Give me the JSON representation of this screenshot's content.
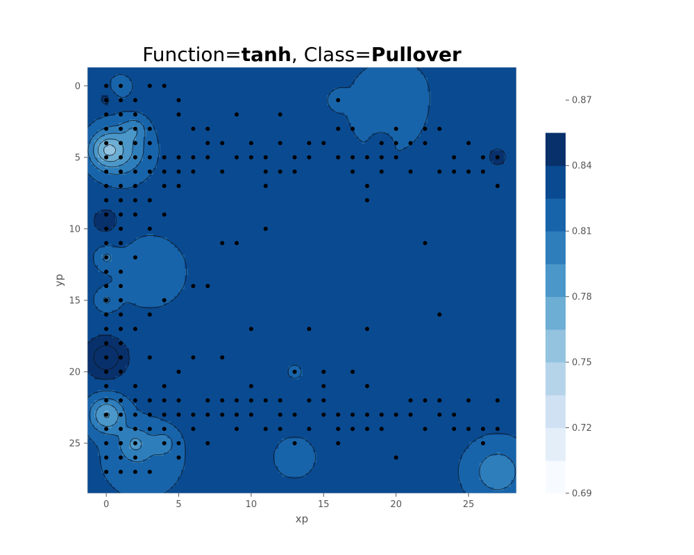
{
  "chart_data": {
    "type": "heatmap",
    "title": {
      "prefix": "Function=",
      "function": "tanh",
      "separator": ", Class=",
      "class": "Pullover"
    },
    "xlabel": "xp",
    "ylabel": "yp",
    "x_ticks": [
      0,
      5,
      10,
      15,
      20,
      25
    ],
    "y_ticks": [
      0,
      5,
      10,
      15,
      20,
      25
    ],
    "xlim": [
      -1.3,
      28.3
    ],
    "ylim": [
      28.5,
      -1.3
    ],
    "y_inverted": true,
    "colorbar": {
      "range": [
        0.69,
        0.885
      ],
      "tick_values": [
        0.69,
        0.72,
        0.75,
        0.78,
        0.81,
        0.84,
        0.87
      ],
      "tick_labels": [
        "0.69",
        "0.72",
        "0.75",
        "0.78",
        "0.81",
        "0.84",
        "0.87"
      ],
      "levels": [
        0.69,
        0.705,
        0.72,
        0.735,
        0.75,
        0.765,
        0.78,
        0.795,
        0.81,
        0.825,
        0.84,
        0.855,
        0.87,
        0.885
      ],
      "colors": [
        "#f7fbff",
        "#e3eef9",
        "#cfe1f2",
        "#b5d4e9",
        "#93c3df",
        "#6daed5",
        "#4b97c9",
        "#2f7ebc",
        "#1864aa",
        "#0a4a90",
        "#08306b"
      ]
    },
    "field": {
      "base": 0.832,
      "anomalies": [
        {
          "x": 20,
          "y": 1.5,
          "a": -0.012,
          "r": 22
        },
        {
          "x": 26,
          "y": 3,
          "a": 0.006,
          "r": 18
        },
        {
          "x": 3,
          "y": 13,
          "a": -0.012,
          "r": 12
        },
        {
          "x": 2.5,
          "y": 26,
          "a": -0.018,
          "r": 9
        },
        {
          "x": 27,
          "y": 27,
          "a": -0.03,
          "r": 5
        },
        {
          "x": 13,
          "y": 26,
          "a": -0.018,
          "r": 2.2
        },
        {
          "x": 1,
          "y": 4.5,
          "a": -0.04,
          "r": 4
        },
        {
          "x": 0,
          "y": 4.5,
          "a": -0.04,
          "r": 1.2
        },
        {
          "x": 1,
          "y": 0,
          "a": -0.02,
          "r": 0.6
        },
        {
          "x": 2,
          "y": 3,
          "a": -0.02,
          "r": 0.6
        },
        {
          "x": 0,
          "y": 23,
          "a": -0.05,
          "r": 1.5
        },
        {
          "x": 2,
          "y": 25,
          "a": -0.025,
          "r": 1
        },
        {
          "x": 4,
          "y": 25,
          "a": -0.02,
          "r": 0.6
        },
        {
          "x": 0,
          "y": 12,
          "a": -0.02,
          "r": 0.5
        },
        {
          "x": 0,
          "y": 15,
          "a": -0.02,
          "r": 0.5
        },
        {
          "x": 0,
          "y": 19,
          "a": 0.035,
          "r": 1.8
        },
        {
          "x": 0,
          "y": 9.5,
          "a": 0.015,
          "r": 1.5
        },
        {
          "x": 0,
          "y": 1,
          "a": 0.012,
          "r": 0.5
        },
        {
          "x": 19,
          "y": 4,
          "a": 0.012,
          "r": 0.35
        },
        {
          "x": 16,
          "y": 1,
          "a": -0.012,
          "r": 0.35
        },
        {
          "x": 13,
          "y": 20,
          "a": -0.012,
          "r": 0.4
        },
        {
          "x": 27,
          "y": 5,
          "a": 0.01,
          "r": 0.35
        }
      ]
    },
    "points": [
      [
        0,
        0
      ],
      [
        1,
        0
      ],
      [
        3,
        0
      ],
      [
        4,
        0
      ],
      [
        0,
        1
      ],
      [
        1,
        1
      ],
      [
        2,
        1
      ],
      [
        5,
        1
      ],
      [
        16,
        1
      ],
      [
        0,
        2
      ],
      [
        1,
        2
      ],
      [
        2,
        2
      ],
      [
        5,
        2
      ],
      [
        9,
        2
      ],
      [
        12,
        2
      ],
      [
        0,
        3
      ],
      [
        1,
        3
      ],
      [
        2,
        3
      ],
      [
        3,
        3
      ],
      [
        6,
        3
      ],
      [
        7,
        3
      ],
      [
        16,
        3
      ],
      [
        17,
        3
      ],
      [
        20,
        3
      ],
      [
        22,
        3
      ],
      [
        23,
        3
      ],
      [
        0,
        4
      ],
      [
        1,
        4
      ],
      [
        2,
        4
      ],
      [
        3,
        4
      ],
      [
        7,
        4
      ],
      [
        8,
        4
      ],
      [
        10,
        4
      ],
      [
        12,
        4
      ],
      [
        14,
        4
      ],
      [
        15,
        4
      ],
      [
        19,
        4
      ],
      [
        20,
        4
      ],
      [
        21,
        4
      ],
      [
        22,
        4
      ],
      [
        25,
        4
      ],
      [
        0,
        5
      ],
      [
        1,
        5
      ],
      [
        2,
        5
      ],
      [
        3,
        5
      ],
      [
        4,
        5
      ],
      [
        5,
        5
      ],
      [
        6,
        5
      ],
      [
        7,
        5
      ],
      [
        9,
        5
      ],
      [
        10,
        5
      ],
      [
        11,
        5
      ],
      [
        13,
        5
      ],
      [
        14,
        5
      ],
      [
        16,
        5
      ],
      [
        17,
        5
      ],
      [
        18,
        5
      ],
      [
        19,
        5
      ],
      [
        20,
        5
      ],
      [
        24,
        5
      ],
      [
        26,
        5
      ],
      [
        27,
        5
      ],
      [
        0,
        6
      ],
      [
        1,
        6
      ],
      [
        2,
        6
      ],
      [
        3,
        6
      ],
      [
        4,
        6
      ],
      [
        5,
        6
      ],
      [
        6,
        6
      ],
      [
        8,
        6
      ],
      [
        11,
        6
      ],
      [
        12,
        6
      ],
      [
        13,
        6
      ],
      [
        17,
        6
      ],
      [
        19,
        6
      ],
      [
        21,
        6
      ],
      [
        23,
        6
      ],
      [
        24,
        6
      ],
      [
        25,
        6
      ],
      [
        26,
        6
      ],
      [
        0,
        7
      ],
      [
        1,
        7
      ],
      [
        2,
        7
      ],
      [
        4,
        7
      ],
      [
        5,
        7
      ],
      [
        11,
        7
      ],
      [
        18,
        7
      ],
      [
        27,
        7
      ],
      [
        0,
        8
      ],
      [
        1,
        8
      ],
      [
        2,
        8
      ],
      [
        3,
        8
      ],
      [
        18,
        8
      ],
      [
        0,
        9
      ],
      [
        1,
        9
      ],
      [
        2,
        9
      ],
      [
        4,
        9
      ],
      [
        0,
        10
      ],
      [
        1,
        10
      ],
      [
        3,
        10
      ],
      [
        11,
        10
      ],
      [
        0,
        11
      ],
      [
        1,
        11
      ],
      [
        8,
        11
      ],
      [
        9,
        11
      ],
      [
        22,
        11
      ],
      [
        0,
        12
      ],
      [
        2,
        12
      ],
      [
        0,
        13
      ],
      [
        1,
        13
      ],
      [
        0,
        14
      ],
      [
        1,
        14
      ],
      [
        6,
        14
      ],
      [
        7,
        14
      ],
      [
        0,
        15
      ],
      [
        1,
        15
      ],
      [
        4,
        15
      ],
      [
        0,
        16
      ],
      [
        1,
        16
      ],
      [
        3,
        16
      ],
      [
        23,
        16
      ],
      [
        0,
        17
      ],
      [
        1,
        17
      ],
      [
        2,
        17
      ],
      [
        10,
        17
      ],
      [
        14,
        17
      ],
      [
        18,
        17
      ],
      [
        0,
        18
      ],
      [
        1,
        18
      ],
      [
        0,
        19
      ],
      [
        1,
        19
      ],
      [
        3,
        19
      ],
      [
        6,
        19
      ],
      [
        8,
        19
      ],
      [
        0,
        20
      ],
      [
        1,
        20
      ],
      [
        5,
        20
      ],
      [
        13,
        20
      ],
      [
        15,
        20
      ],
      [
        17,
        20
      ],
      [
        0,
        21
      ],
      [
        2,
        21
      ],
      [
        4,
        21
      ],
      [
        10,
        21
      ],
      [
        15,
        21
      ],
      [
        18,
        21
      ],
      [
        0,
        22
      ],
      [
        1,
        22
      ],
      [
        2,
        22
      ],
      [
        3,
        22
      ],
      [
        4,
        22
      ],
      [
        5,
        22
      ],
      [
        7,
        22
      ],
      [
        8,
        22
      ],
      [
        9,
        22
      ],
      [
        10,
        22
      ],
      [
        11,
        22
      ],
      [
        12,
        22
      ],
      [
        14,
        22
      ],
      [
        15,
        22
      ],
      [
        21,
        22
      ],
      [
        22,
        22
      ],
      [
        23,
        22
      ],
      [
        25,
        22
      ],
      [
        27,
        22
      ],
      [
        0,
        23
      ],
      [
        1,
        23
      ],
      [
        2,
        23
      ],
      [
        3,
        23
      ],
      [
        4,
        23
      ],
      [
        5,
        23
      ],
      [
        6,
        23
      ],
      [
        7,
        23
      ],
      [
        8,
        23
      ],
      [
        9,
        23
      ],
      [
        10,
        23
      ],
      [
        12,
        23
      ],
      [
        13,
        23
      ],
      [
        15,
        23
      ],
      [
        16,
        23
      ],
      [
        17,
        23
      ],
      [
        18,
        23
      ],
      [
        19,
        23
      ],
      [
        20,
        23
      ],
      [
        21,
        23
      ],
      [
        23,
        23
      ],
      [
        24,
        23
      ],
      [
        0,
        24
      ],
      [
        1,
        24
      ],
      [
        2,
        24
      ],
      [
        3,
        24
      ],
      [
        4,
        24
      ],
      [
        6,
        24
      ],
      [
        9,
        24
      ],
      [
        11,
        24
      ],
      [
        12,
        24
      ],
      [
        14,
        24
      ],
      [
        16,
        24
      ],
      [
        17,
        24
      ],
      [
        18,
        24
      ],
      [
        19,
        24
      ],
      [
        22,
        24
      ],
      [
        24,
        24
      ],
      [
        25,
        24
      ],
      [
        26,
        24
      ],
      [
        27,
        24
      ],
      [
        0,
        25
      ],
      [
        1,
        25
      ],
      [
        2,
        25
      ],
      [
        4,
        25
      ],
      [
        5,
        25
      ],
      [
        7,
        25
      ],
      [
        13,
        25
      ],
      [
        16,
        25
      ],
      [
        26,
        25
      ],
      [
        0,
        26
      ],
      [
        1,
        26
      ],
      [
        2,
        26
      ],
      [
        5,
        26
      ],
      [
        20,
        26
      ],
      [
        0,
        27
      ],
      [
        1,
        27
      ],
      [
        2,
        27
      ],
      [
        3,
        27
      ]
    ]
  }
}
